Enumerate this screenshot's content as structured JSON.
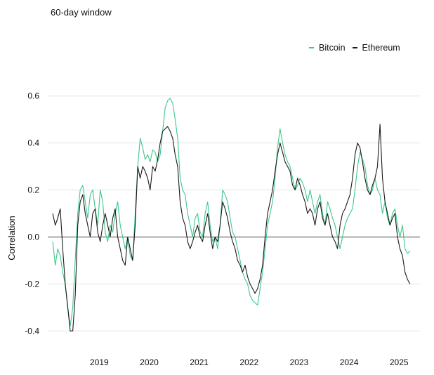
{
  "chart_data": {
    "type": "line",
    "subtitle": "60-day window",
    "title": "",
    "xlabel": "",
    "ylabel": "Correlation",
    "ylim": [
      -0.45,
      0.62
    ],
    "xlim": [
      2018.25,
      2025.7
    ],
    "y_ticks": [
      -0.4,
      -0.2,
      0.0,
      0.2,
      0.4,
      0.6
    ],
    "y_tick_labels": [
      "-0.4",
      "-0.2",
      "0.0",
      "0.2",
      "0.4",
      "0.6"
    ],
    "x_ticks": [
      2019.0,
      2020.0,
      2021.0,
      2022.0,
      2023.0,
      2024.0,
      2025.0
    ],
    "x_tick_labels": [
      "2019",
      "2020",
      "2021",
      "2022",
      "2023",
      "2024",
      "2025"
    ],
    "grid": "horizontal",
    "legend_position": "top-right",
    "series": [
      {
        "name": "Bitcoin",
        "color": "#3cc88a",
        "x": [
          2018.35,
          2018.4,
          2018.45,
          2018.5,
          2018.55,
          2018.6,
          2018.65,
          2018.7,
          2018.75,
          2018.8,
          2018.85,
          2018.9,
          2018.95,
          2019.0,
          2019.05,
          2019.1,
          2019.15,
          2019.2,
          2019.25,
          2019.3,
          2019.35,
          2019.4,
          2019.45,
          2019.5,
          2019.55,
          2019.6,
          2019.65,
          2019.7,
          2019.75,
          2019.8,
          2019.85,
          2019.9,
          2019.95,
          2020.0,
          2020.05,
          2020.1,
          2020.15,
          2020.2,
          2020.25,
          2020.3,
          2020.35,
          2020.4,
          2020.45,
          2020.5,
          2020.55,
          2020.6,
          2020.65,
          2020.7,
          2020.75,
          2020.8,
          2020.85,
          2020.9,
          2020.95,
          2021.0,
          2021.05,
          2021.1,
          2021.15,
          2021.2,
          2021.25,
          2021.3,
          2021.35,
          2021.4,
          2021.45,
          2021.5,
          2021.55,
          2021.6,
          2021.65,
          2021.7,
          2021.75,
          2021.8,
          2021.85,
          2021.9,
          2021.95,
          2022.0,
          2022.05,
          2022.1,
          2022.15,
          2022.2,
          2022.25,
          2022.3,
          2022.35,
          2022.4,
          2022.45,
          2022.5,
          2022.55,
          2022.6,
          2022.65,
          2022.7,
          2022.75,
          2022.8,
          2022.85,
          2022.9,
          2022.95,
          2023.0,
          2023.05,
          2023.1,
          2023.15,
          2023.2,
          2023.25,
          2023.3,
          2023.35,
          2023.4,
          2023.45,
          2023.5,
          2023.55,
          2023.6,
          2023.65,
          2023.7,
          2023.75,
          2023.8,
          2023.85,
          2023.9,
          2023.95,
          2024.0,
          2024.05,
          2024.1,
          2024.15,
          2024.2,
          2024.25,
          2024.3,
          2024.35,
          2024.4,
          2024.45,
          2024.5,
          2024.55,
          2024.6,
          2024.65,
          2024.7,
          2024.75,
          2024.8,
          2024.85,
          2024.9,
          2024.95,
          2025.0,
          2025.05,
          2025.1,
          2025.15,
          2025.2,
          2025.25,
          2025.3,
          2025.35,
          2025.4,
          2025.45,
          2025.5
        ],
        "values": [
          -0.02,
          -0.12,
          -0.05,
          -0.08,
          -0.15,
          -0.2,
          -0.3,
          -0.38,
          -0.3,
          -0.1,
          0.1,
          0.2,
          0.22,
          0.15,
          0.08,
          0.18,
          0.2,
          0.12,
          0.05,
          0.2,
          0.15,
          0.02,
          -0.02,
          0.05,
          0.02,
          0.1,
          0.15,
          0.05,
          0.0,
          -0.05,
          0.0,
          -0.08,
          -0.1,
          0.1,
          0.3,
          0.42,
          0.38,
          0.33,
          0.35,
          0.32,
          0.37,
          0.36,
          0.32,
          0.35,
          0.45,
          0.55,
          0.58,
          0.59,
          0.57,
          0.5,
          0.42,
          0.25,
          0.2,
          0.18,
          0.1,
          0.05,
          0.0,
          0.08,
          0.1,
          0.02,
          0.0,
          0.1,
          0.15,
          0.05,
          -0.02,
          0.0,
          -0.05,
          0.05,
          0.2,
          0.18,
          0.15,
          0.08,
          0.02,
          0.0,
          -0.05,
          -0.1,
          -0.15,
          -0.18,
          -0.2,
          -0.25,
          -0.27,
          -0.28,
          -0.29,
          -0.22,
          -0.15,
          -0.05,
          0.05,
          0.1,
          0.15,
          0.25,
          0.38,
          0.46,
          0.4,
          0.35,
          0.32,
          0.3,
          0.25,
          0.2,
          0.22,
          0.25,
          0.23,
          0.2,
          0.15,
          0.2,
          0.15,
          0.1,
          0.15,
          0.18,
          0.1,
          0.05,
          0.15,
          0.12,
          0.08,
          0.05,
          0.0,
          -0.05,
          0.0,
          0.05,
          0.08,
          0.1,
          0.12,
          0.2,
          0.3,
          0.36,
          0.33,
          0.3,
          0.22,
          0.18,
          0.2,
          0.25,
          0.2,
          0.18,
          0.1,
          0.15,
          0.08,
          0.05,
          0.1,
          0.12,
          0.05,
          0.0,
          0.05,
          -0.05,
          -0.07,
          -0.06
        ]
      },
      {
        "name": "Ethereum",
        "color": "#1a1a1a",
        "x": [
          2018.35,
          2018.4,
          2018.45,
          2018.5,
          2018.55,
          2018.6,
          2018.65,
          2018.7,
          2018.75,
          2018.8,
          2018.85,
          2018.9,
          2018.95,
          2019.0,
          2019.05,
          2019.1,
          2019.15,
          2019.2,
          2019.25,
          2019.3,
          2019.35,
          2019.4,
          2019.45,
          2019.5,
          2019.55,
          2019.6,
          2019.65,
          2019.7,
          2019.75,
          2019.8,
          2019.85,
          2019.9,
          2019.95,
          2020.0,
          2020.05,
          2020.1,
          2020.15,
          2020.2,
          2020.25,
          2020.3,
          2020.35,
          2020.4,
          2020.45,
          2020.5,
          2020.55,
          2020.6,
          2020.65,
          2020.7,
          2020.75,
          2020.8,
          2020.85,
          2020.9,
          2020.95,
          2021.0,
          2021.05,
          2021.1,
          2021.15,
          2021.2,
          2021.25,
          2021.3,
          2021.35,
          2021.4,
          2021.45,
          2021.5,
          2021.55,
          2021.6,
          2021.65,
          2021.7,
          2021.75,
          2021.8,
          2021.85,
          2021.9,
          2021.95,
          2022.0,
          2022.05,
          2022.1,
          2022.15,
          2022.2,
          2022.25,
          2022.3,
          2022.35,
          2022.4,
          2022.45,
          2022.5,
          2022.55,
          2022.6,
          2022.65,
          2022.7,
          2022.75,
          2022.8,
          2022.85,
          2022.9,
          2022.95,
          2023.0,
          2023.05,
          2023.1,
          2023.15,
          2023.2,
          2023.25,
          2023.3,
          2023.35,
          2023.4,
          2023.45,
          2023.5,
          2023.55,
          2023.6,
          2023.65,
          2023.7,
          2023.75,
          2023.8,
          2023.85,
          2023.9,
          2023.95,
          2024.0,
          2024.05,
          2024.1,
          2024.15,
          2024.2,
          2024.25,
          2024.3,
          2024.35,
          2024.4,
          2024.45,
          2024.5,
          2024.55,
          2024.6,
          2024.65,
          2024.7,
          2024.75,
          2024.8,
          2024.85,
          2024.9,
          2024.95,
          2025.0,
          2025.05,
          2025.1,
          2025.15,
          2025.2,
          2025.25,
          2025.3,
          2025.35,
          2025.4,
          2025.45,
          2025.5
        ],
        "values": [
          0.1,
          0.05,
          0.08,
          0.12,
          -0.05,
          -0.2,
          -0.3,
          -0.4,
          -0.4,
          -0.25,
          0.05,
          0.15,
          0.18,
          0.1,
          0.05,
          0.0,
          0.1,
          0.12,
          0.02,
          -0.02,
          0.05,
          0.1,
          0.05,
          0.0,
          0.08,
          0.12,
          0.0,
          -0.05,
          -0.1,
          -0.12,
          0.0,
          -0.05,
          -0.1,
          0.05,
          0.3,
          0.25,
          0.3,
          0.28,
          0.25,
          0.2,
          0.3,
          0.28,
          0.33,
          0.4,
          0.45,
          0.46,
          0.47,
          0.45,
          0.42,
          0.35,
          0.3,
          0.15,
          0.08,
          0.05,
          -0.02,
          -0.05,
          -0.02,
          0.02,
          0.05,
          0.0,
          -0.02,
          0.05,
          0.1,
          0.02,
          -0.05,
          0.0,
          -0.02,
          0.05,
          0.15,
          0.12,
          0.08,
          0.02,
          -0.02,
          -0.05,
          -0.1,
          -0.12,
          -0.15,
          -0.12,
          -0.17,
          -0.2,
          -0.22,
          -0.24,
          -0.22,
          -0.18,
          -0.12,
          0.0,
          0.1,
          0.15,
          0.2,
          0.28,
          0.35,
          0.4,
          0.36,
          0.32,
          0.3,
          0.28,
          0.22,
          0.2,
          0.25,
          0.22,
          0.18,
          0.15,
          0.1,
          0.12,
          0.1,
          0.05,
          0.12,
          0.15,
          0.08,
          0.05,
          0.1,
          0.05,
          0.0,
          -0.02,
          -0.05,
          0.05,
          0.1,
          0.12,
          0.15,
          0.18,
          0.25,
          0.35,
          0.4,
          0.38,
          0.32,
          0.25,
          0.2,
          0.18,
          0.22,
          0.25,
          0.3,
          0.48,
          0.25,
          0.15,
          0.1,
          0.05,
          0.08,
          0.1,
          0.0,
          -0.05,
          -0.08,
          -0.15,
          -0.18,
          -0.2
        ]
      }
    ]
  }
}
